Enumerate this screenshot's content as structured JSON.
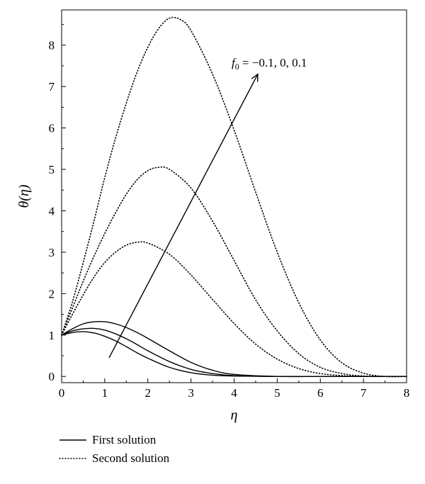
{
  "chart_data": {
    "type": "line",
    "xlabel": "η",
    "ylabel": "θ(η)",
    "xlim": [
      0,
      8
    ],
    "ylim": [
      -0.15,
      8.85
    ],
    "xticks": [
      0,
      1,
      2,
      3,
      4,
      5,
      6,
      7,
      8
    ],
    "yticks": [
      0,
      1,
      2,
      3,
      4,
      5,
      6,
      7,
      8
    ],
    "grid": false,
    "legend_position": "bottom-left",
    "annotation": {
      "text_prefix": "f",
      "text_subscript": "0",
      "text_suffix": " = −0.1, 0, 0.1",
      "arrow_from": [
        1.1,
        0.45
      ],
      "arrow_to": [
        4.55,
        7.3
      ]
    },
    "legend": [
      {
        "label": "First solution",
        "style": "solid"
      },
      {
        "label": "Second solution",
        "style": "dotted"
      }
    ],
    "series": [
      {
        "group": "First solution",
        "style": "solid",
        "x": [
          0,
          0.25,
          0.5,
          0.75,
          1,
          1.25,
          1.5,
          1.75,
          2,
          2.5,
          3,
          3.5,
          4,
          5,
          6,
          7,
          8
        ],
        "y": [
          1,
          1.06,
          1.08,
          1.05,
          0.97,
          0.86,
          0.72,
          0.57,
          0.44,
          0.22,
          0.09,
          0.03,
          0.01,
          0,
          0,
          0,
          0
        ]
      },
      {
        "group": "First solution",
        "style": "solid",
        "x": [
          0,
          0.25,
          0.5,
          0.75,
          1,
          1.25,
          1.5,
          1.75,
          2,
          2.5,
          3,
          3.5,
          4,
          5,
          6,
          7,
          8
        ],
        "y": [
          1,
          1.1,
          1.15,
          1.16,
          1.12,
          1.03,
          0.91,
          0.77,
          0.62,
          0.36,
          0.17,
          0.07,
          0.02,
          0,
          0,
          0,
          0
        ]
      },
      {
        "group": "First solution",
        "style": "solid",
        "x": [
          0,
          0.25,
          0.5,
          0.75,
          1,
          1.25,
          1.5,
          1.75,
          2,
          2.5,
          3,
          3.5,
          4,
          5,
          6,
          7,
          8
        ],
        "y": [
          1,
          1.15,
          1.27,
          1.32,
          1.32,
          1.27,
          1.18,
          1.06,
          0.92,
          0.62,
          0.34,
          0.15,
          0.05,
          0,
          0,
          0,
          0
        ]
      },
      {
        "group": "Second solution",
        "style": "dotted",
        "x": [
          0,
          0.25,
          0.5,
          0.75,
          1,
          1.25,
          1.5,
          1.75,
          2,
          2.5,
          3,
          3.5,
          4,
          4.5,
          5,
          5.5,
          6,
          6.5,
          7,
          7.5,
          8
        ],
        "y": [
          1,
          1.5,
          1.97,
          2.4,
          2.75,
          3.0,
          3.17,
          3.24,
          3.22,
          2.95,
          2.45,
          1.86,
          1.28,
          0.78,
          0.42,
          0.19,
          0.07,
          0.02,
          0,
          0,
          0
        ]
      },
      {
        "group": "Second solution",
        "style": "dotted",
        "x": [
          0,
          0.25,
          0.5,
          0.75,
          1,
          1.25,
          1.5,
          1.75,
          2,
          2.25,
          2.5,
          3,
          3.5,
          4,
          4.5,
          5,
          5.5,
          6,
          6.5,
          7,
          7.5,
          8
        ],
        "y": [
          1,
          1.65,
          2.3,
          2.9,
          3.45,
          3.95,
          4.4,
          4.75,
          4.97,
          5.05,
          5.0,
          4.55,
          3.75,
          2.8,
          1.85,
          1.1,
          0.55,
          0.22,
          0.07,
          0.01,
          0,
          0
        ]
      },
      {
        "group": "Second solution",
        "style": "dotted",
        "x": [
          0,
          0.25,
          0.5,
          0.75,
          1,
          1.25,
          1.5,
          1.75,
          2,
          2.25,
          2.5,
          2.75,
          3,
          3.5,
          4,
          4.5,
          5,
          5.5,
          6,
          6.5,
          7,
          7.5,
          8
        ],
        "y": [
          1,
          1.8,
          2.75,
          3.75,
          4.8,
          5.75,
          6.6,
          7.35,
          7.95,
          8.4,
          8.65,
          8.62,
          8.35,
          7.3,
          5.95,
          4.45,
          3.0,
          1.78,
          0.88,
          0.33,
          0.08,
          0,
          0
        ]
      }
    ]
  }
}
